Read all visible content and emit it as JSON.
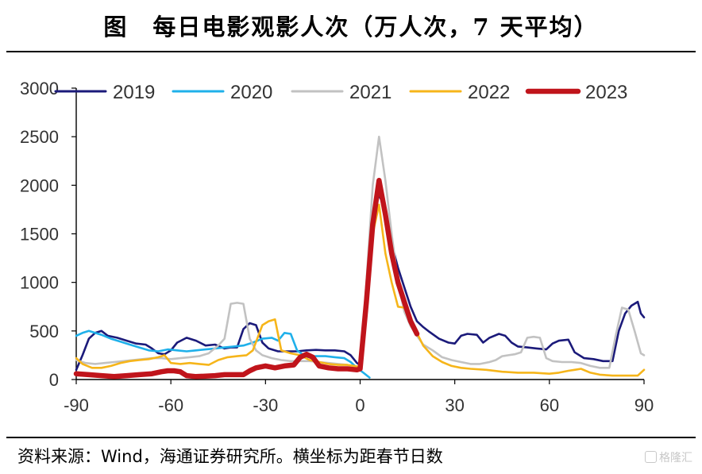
{
  "title": "图　每日电影观影人次（万人次，7 天平均）",
  "source": "资料来源：Wind，海通证券研究所。横坐标为距春节日数",
  "watermark": "格隆汇",
  "colors": {
    "2019": "#1b1a7a",
    "2020": "#1fb0ea",
    "2021": "#c2c2c2",
    "2022": "#f6b51a",
    "2023": "#c0141b"
  },
  "chart_data": {
    "type": "line",
    "xlabel": "",
    "ylabel": "",
    "xlim": [
      -90,
      90
    ],
    "ylim": [
      0,
      3000
    ],
    "xticks": [
      -90,
      -60,
      -30,
      0,
      30,
      60,
      90
    ],
    "yticks": [
      0,
      500,
      1000,
      1500,
      2000,
      2500,
      3000
    ],
    "grid": false,
    "legend_position": "top",
    "series": [
      {
        "name": "2019",
        "points": [
          [
            -90,
            100
          ],
          [
            -88,
            250
          ],
          [
            -86,
            420
          ],
          [
            -84,
            480
          ],
          [
            -82,
            500
          ],
          [
            -80,
            450
          ],
          [
            -77,
            430
          ],
          [
            -74,
            400
          ],
          [
            -71,
            370
          ],
          [
            -68,
            360
          ],
          [
            -66,
            320
          ],
          [
            -64,
            270
          ],
          [
            -62,
            260
          ],
          [
            -60,
            300
          ],
          [
            -58,
            380
          ],
          [
            -55,
            430
          ],
          [
            -52,
            400
          ],
          [
            -49,
            350
          ],
          [
            -46,
            360
          ],
          [
            -43,
            320
          ],
          [
            -41,
            330
          ],
          [
            -39,
            330
          ],
          [
            -37,
            520
          ],
          [
            -35,
            580
          ],
          [
            -33,
            560
          ],
          [
            -31,
            380
          ],
          [
            -29,
            320
          ],
          [
            -26,
            290
          ],
          [
            -23,
            290
          ],
          [
            -20,
            290
          ],
          [
            -17,
            300
          ],
          [
            -14,
            305
          ],
          [
            -11,
            300
          ],
          [
            -8,
            300
          ],
          [
            -5,
            290
          ],
          [
            -3,
            250
          ],
          [
            -1,
            170
          ],
          [
            0,
            150
          ],
          [
            2,
            900
          ],
          [
            4,
            1700
          ],
          [
            6,
            1900
          ],
          [
            8,
            1750
          ],
          [
            10,
            1400
          ],
          [
            12,
            1150
          ],
          [
            14,
            950
          ],
          [
            16,
            750
          ],
          [
            18,
            600
          ],
          [
            20,
            540
          ],
          [
            22,
            490
          ],
          [
            25,
            420
          ],
          [
            28,
            380
          ],
          [
            30,
            370
          ],
          [
            32,
            450
          ],
          [
            34,
            470
          ],
          [
            37,
            460
          ],
          [
            39,
            380
          ],
          [
            41,
            430
          ],
          [
            44,
            470
          ],
          [
            46,
            450
          ],
          [
            48,
            380
          ],
          [
            50,
            340
          ],
          [
            53,
            330
          ],
          [
            56,
            320
          ],
          [
            59,
            310
          ],
          [
            61,
            370
          ],
          [
            63,
            400
          ],
          [
            66,
            410
          ],
          [
            68,
            280
          ],
          [
            71,
            220
          ],
          [
            74,
            210
          ],
          [
            77,
            190
          ],
          [
            80,
            190
          ],
          [
            82,
            500
          ],
          [
            84,
            680
          ],
          [
            86,
            760
          ],
          [
            88,
            800
          ],
          [
            89,
            680
          ],
          [
            90,
            640
          ]
        ]
      },
      {
        "name": "2020",
        "points": [
          [
            -90,
            450
          ],
          [
            -88,
            480
          ],
          [
            -86,
            500
          ],
          [
            -84,
            480
          ],
          [
            -82,
            460
          ],
          [
            -79,
            420
          ],
          [
            -76,
            390
          ],
          [
            -73,
            360
          ],
          [
            -70,
            330
          ],
          [
            -67,
            300
          ],
          [
            -64,
            290
          ],
          [
            -61,
            310
          ],
          [
            -58,
            300
          ],
          [
            -55,
            290
          ],
          [
            -52,
            300
          ],
          [
            -49,
            310
          ],
          [
            -46,
            320
          ],
          [
            -43,
            330
          ],
          [
            -40,
            340
          ],
          [
            -37,
            350
          ],
          [
            -34,
            380
          ],
          [
            -31,
            420
          ],
          [
            -28,
            430
          ],
          [
            -26,
            400
          ],
          [
            -24,
            480
          ],
          [
            -22,
            470
          ],
          [
            -20,
            300
          ],
          [
            -17,
            230
          ],
          [
            -14,
            240
          ],
          [
            -11,
            240
          ],
          [
            -8,
            230
          ],
          [
            -5,
            220
          ],
          [
            -3,
            180
          ],
          [
            -1,
            120
          ],
          [
            1,
            70
          ],
          [
            3,
            20
          ]
        ]
      },
      {
        "name": "2021",
        "points": [
          [
            -90,
            200
          ],
          [
            -87,
            170
          ],
          [
            -84,
            160
          ],
          [
            -81,
            170
          ],
          [
            -78,
            180
          ],
          [
            -75,
            190
          ],
          [
            -72,
            200
          ],
          [
            -69,
            210
          ],
          [
            -66,
            220
          ],
          [
            -63,
            220
          ],
          [
            -60,
            210
          ],
          [
            -57,
            220
          ],
          [
            -54,
            230
          ],
          [
            -51,
            240
          ],
          [
            -48,
            270
          ],
          [
            -45,
            350
          ],
          [
            -43,
            420
          ],
          [
            -41,
            780
          ],
          [
            -39,
            790
          ],
          [
            -37,
            780
          ],
          [
            -35,
            420
          ],
          [
            -33,
            300
          ],
          [
            -31,
            250
          ],
          [
            -28,
            220
          ],
          [
            -25,
            200
          ],
          [
            -22,
            190
          ],
          [
            -19,
            190
          ],
          [
            -16,
            190
          ],
          [
            -13,
            180
          ],
          [
            -10,
            170
          ],
          [
            -7,
            160
          ],
          [
            -4,
            150
          ],
          [
            -2,
            140
          ],
          [
            0,
            110
          ],
          [
            2,
            1000
          ],
          [
            4,
            2000
          ],
          [
            6,
            2500
          ],
          [
            8,
            2050
          ],
          [
            10,
            1500
          ],
          [
            12,
            1000
          ],
          [
            14,
            700
          ],
          [
            16,
            550
          ],
          [
            18,
            450
          ],
          [
            20,
            360
          ],
          [
            23,
            300
          ],
          [
            26,
            230
          ],
          [
            29,
            200
          ],
          [
            32,
            180
          ],
          [
            35,
            160
          ],
          [
            38,
            160
          ],
          [
            41,
            180
          ],
          [
            43,
            200
          ],
          [
            45,
            240
          ],
          [
            47,
            250
          ],
          [
            49,
            260
          ],
          [
            51,
            280
          ],
          [
            53,
            430
          ],
          [
            55,
            440
          ],
          [
            57,
            430
          ],
          [
            59,
            220
          ],
          [
            61,
            190
          ],
          [
            64,
            180
          ],
          [
            67,
            180
          ],
          [
            70,
            170
          ],
          [
            73,
            140
          ],
          [
            76,
            120
          ],
          [
            79,
            120
          ],
          [
            81,
            450
          ],
          [
            83,
            740
          ],
          [
            85,
            720
          ],
          [
            87,
            500
          ],
          [
            89,
            270
          ],
          [
            90,
            250
          ]
        ]
      },
      {
        "name": "2022",
        "points": [
          [
            -90,
            220
          ],
          [
            -88,
            160
          ],
          [
            -85,
            120
          ],
          [
            -82,
            120
          ],
          [
            -79,
            140
          ],
          [
            -76,
            170
          ],
          [
            -73,
            190
          ],
          [
            -70,
            200
          ],
          [
            -67,
            210
          ],
          [
            -64,
            230
          ],
          [
            -62,
            250
          ],
          [
            -60,
            170
          ],
          [
            -57,
            160
          ],
          [
            -54,
            170
          ],
          [
            -51,
            160
          ],
          [
            -48,
            150
          ],
          [
            -45,
            200
          ],
          [
            -42,
            230
          ],
          [
            -39,
            240
          ],
          [
            -36,
            250
          ],
          [
            -34,
            300
          ],
          [
            -31,
            560
          ],
          [
            -29,
            600
          ],
          [
            -27,
            620
          ],
          [
            -25,
            300
          ],
          [
            -22,
            270
          ],
          [
            -19,
            250
          ],
          [
            -16,
            200
          ],
          [
            -13,
            180
          ],
          [
            -10,
            160
          ],
          [
            -7,
            150
          ],
          [
            -4,
            150
          ],
          [
            -2,
            140
          ],
          [
            0,
            130
          ],
          [
            2,
            800
          ],
          [
            4,
            1500
          ],
          [
            6,
            1800
          ],
          [
            8,
            1300
          ],
          [
            10,
            1000
          ],
          [
            12,
            750
          ],
          [
            14,
            740
          ],
          [
            16,
            600
          ],
          [
            18,
            480
          ],
          [
            20,
            350
          ],
          [
            23,
            240
          ],
          [
            26,
            180
          ],
          [
            29,
            140
          ],
          [
            32,
            120
          ],
          [
            35,
            110
          ],
          [
            40,
            100
          ],
          [
            45,
            80
          ],
          [
            50,
            70
          ],
          [
            55,
            70
          ],
          [
            60,
            60
          ],
          [
            63,
            70
          ],
          [
            66,
            90
          ],
          [
            68,
            100
          ],
          [
            70,
            110
          ],
          [
            73,
            70
          ],
          [
            76,
            50
          ],
          [
            80,
            40
          ],
          [
            84,
            40
          ],
          [
            88,
            40
          ],
          [
            90,
            100
          ]
        ]
      },
      {
        "name": "2023",
        "points": [
          [
            -90,
            60
          ],
          [
            -86,
            50
          ],
          [
            -82,
            40
          ],
          [
            -78,
            30
          ],
          [
            -74,
            40
          ],
          [
            -70,
            50
          ],
          [
            -66,
            60
          ],
          [
            -63,
            80
          ],
          [
            -61,
            90
          ],
          [
            -59,
            90
          ],
          [
            -57,
            80
          ],
          [
            -55,
            40
          ],
          [
            -52,
            30
          ],
          [
            -49,
            35
          ],
          [
            -46,
            40
          ],
          [
            -43,
            50
          ],
          [
            -40,
            50
          ],
          [
            -37,
            50
          ],
          [
            -35,
            90
          ],
          [
            -33,
            120
          ],
          [
            -30,
            140
          ],
          [
            -27,
            120
          ],
          [
            -24,
            140
          ],
          [
            -21,
            150
          ],
          [
            -19,
            230
          ],
          [
            -17,
            260
          ],
          [
            -15,
            230
          ],
          [
            -13,
            140
          ],
          [
            -10,
            120
          ],
          [
            -7,
            110
          ],
          [
            -4,
            110
          ],
          [
            -1,
            100
          ],
          [
            0,
            110
          ],
          [
            2,
            800
          ],
          [
            4,
            1600
          ],
          [
            6,
            2050
          ],
          [
            8,
            1700
          ],
          [
            10,
            1300
          ],
          [
            12,
            1000
          ],
          [
            14,
            800
          ],
          [
            16,
            600
          ],
          [
            18,
            470
          ]
        ]
      }
    ]
  }
}
